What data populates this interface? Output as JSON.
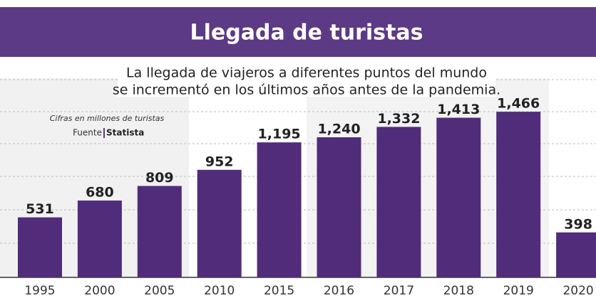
{
  "chart_data": {
    "type": "bar",
    "title": "Llegada de turistas",
    "subtitle": [
      "La llegada de viajeros a diferentes puntos del mundo",
      "se incrementó en los últimos años antes de la pandemia."
    ],
    "note": "Cifras en millones de turistas",
    "source_label": "Fuente",
    "source": "Statista",
    "categories": [
      "1995",
      "2000",
      "2005",
      "2010",
      "2015",
      "2016",
      "2017",
      "2018",
      "2019",
      "2020"
    ],
    "values": [
      531,
      680,
      809,
      952,
      1195,
      1240,
      1332,
      1413,
      1466,
      398
    ],
    "value_labels": [
      "531",
      "680",
      "809",
      "952",
      "1,195",
      "1,240",
      "1,332",
      "1,413",
      "1,466",
      "398"
    ],
    "color": "#512c7a",
    "ylim": [
      0,
      1750
    ]
  }
}
